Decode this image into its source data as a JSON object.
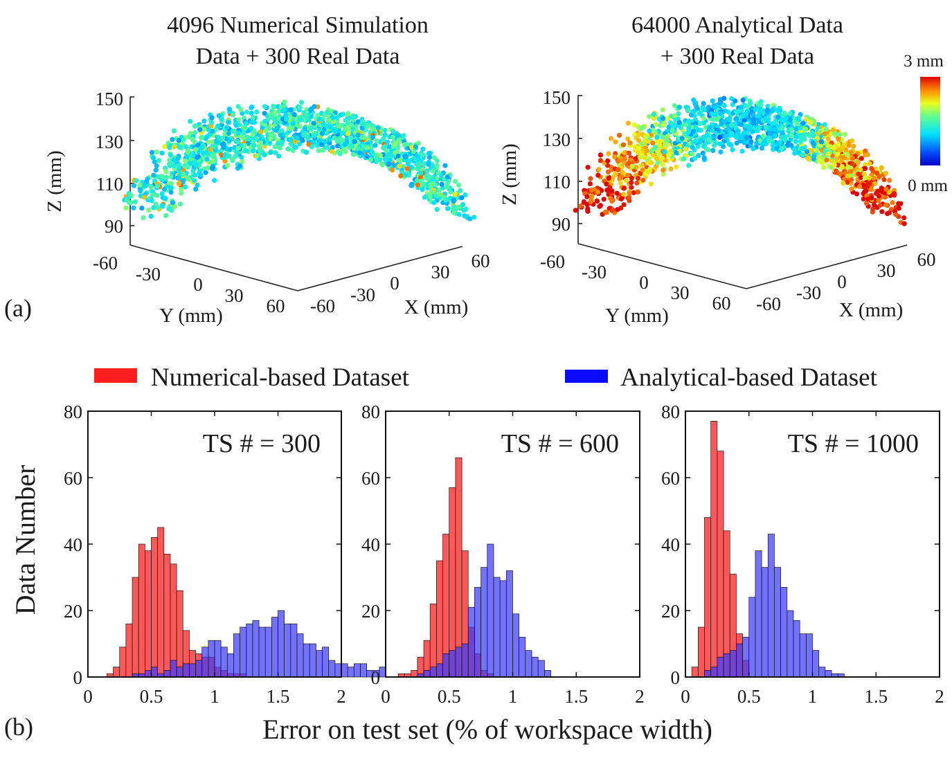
{
  "panel_a": {
    "label": "(a)",
    "left_title_line1": "4096 Numerical Simulation",
    "left_title_line2": "Data + 300 Real Data",
    "right_title_line1": "64000 Analytical Data",
    "right_title_line2": "+ 300 Real Data",
    "zlabel": "Z (mm)",
    "xlabel": "X (mm)",
    "ylabel": "Y (mm)",
    "z_ticks": [
      "150",
      "130",
      "110",
      "90"
    ],
    "x_ticks": [
      "-60",
      "-30",
      "0",
      "30",
      "60"
    ],
    "y_ticks": [
      "-60",
      "-30",
      "0",
      "30",
      "60"
    ],
    "colorbar_max": "3 mm",
    "colorbar_min": "0 mm"
  },
  "panel_b": {
    "label": "(b)",
    "legend_numerical": "Numerical-based Dataset",
    "legend_analytical": "Analytical-based Dataset",
    "ylabel": "Data Number",
    "xlabel": "Error on test set (% of workspace width)",
    "y_ticks": [
      "0",
      "20",
      "40",
      "60",
      "80"
    ],
    "x_ticks": [
      "0",
      "0.5",
      "1",
      "1.5",
      "2"
    ]
  },
  "colors": {
    "numerical": "#ff3b3b",
    "analytical": "#3b3bff",
    "overlap": "#5a1a8c"
  },
  "chart_data": [
    {
      "type": "scatter",
      "subtype": "3d-scatter",
      "title": "4096 Numerical Simulation Data + 300 Real Data",
      "xlabel": "X (mm)",
      "ylabel": "Y (mm)",
      "zlabel": "Z (mm)",
      "xlim": [
        -60,
        60
      ],
      "ylim": [
        -60,
        60
      ],
      "zlim": [
        85,
        150
      ],
      "color_scale": [
        0,
        3
      ],
      "dominant_error_range_mm": [
        0.5,
        1.5
      ]
    },
    {
      "type": "scatter",
      "subtype": "3d-scatter",
      "title": "64000 Analytical Data + 300 Real Data",
      "xlabel": "X (mm)",
      "ylabel": "Y (mm)",
      "zlabel": "Z (mm)",
      "xlim": [
        -60,
        60
      ],
      "ylim": [
        -60,
        60
      ],
      "zlim": [
        85,
        150
      ],
      "color_scale": [
        0,
        3
      ],
      "colorbar_labels": [
        "3 mm",
        "0 mm"
      ],
      "dominant_error_range_mm": [
        0.5,
        3
      ]
    },
    {
      "type": "bar",
      "subtype": "histogram",
      "annotation": "TS # = 300",
      "xlabel": "Error on test set (% of workspace width)",
      "ylabel": "Data Number",
      "xlim": [
        0,
        2
      ],
      "ylim": [
        0,
        80
      ],
      "bin_width": 0.05,
      "series": [
        {
          "name": "Numerical-based Dataset",
          "start": 0.15,
          "values": [
            1,
            3,
            9,
            16,
            30,
            40,
            38,
            42,
            45,
            37,
            34,
            26,
            14,
            8,
            7,
            6,
            6,
            3,
            2,
            1,
            1,
            1
          ]
        },
        {
          "name": "Analytical-based Dataset",
          "start": 0.35,
          "values": [
            1,
            1,
            2,
            3,
            1,
            2,
            5,
            3,
            4,
            4,
            5,
            9,
            11,
            11,
            9,
            7,
            13,
            15,
            16,
            17,
            15,
            15,
            18,
            20,
            16,
            16,
            13,
            10,
            10,
            8,
            9,
            5,
            4,
            4,
            3,
            4,
            4,
            2,
            2,
            3
          ]
        }
      ]
    },
    {
      "type": "bar",
      "subtype": "histogram",
      "annotation": "TS # = 600",
      "xlabel": "Error on test set (% of workspace width)",
      "ylabel": "Data Number",
      "xlim": [
        0,
        2
      ],
      "ylim": [
        0,
        80
      ],
      "bin_width": 0.05,
      "series": [
        {
          "name": "Numerical-based Dataset",
          "start": 0.1,
          "values": [
            1,
            1,
            2,
            6,
            11,
            22,
            35,
            43,
            57,
            66,
            38,
            15,
            7,
            2,
            1
          ]
        },
        {
          "name": "Analytical-based Dataset",
          "start": 0.25,
          "values": [
            1,
            2,
            3,
            4,
            7,
            8,
            9,
            10,
            21,
            27,
            33,
            40,
            30,
            29,
            32,
            19,
            12,
            8,
            6,
            5,
            2
          ]
        }
      ]
    },
    {
      "type": "bar",
      "subtype": "histogram",
      "annotation": "TS # = 1000",
      "xlabel": "Error on test set (% of workspace width)",
      "ylabel": "Data Number",
      "xlim": [
        0,
        2
      ],
      "ylim": [
        0,
        80
      ],
      "bin_width": 0.05,
      "series": [
        {
          "name": "Numerical-based Dataset",
          "start": 0.05,
          "values": [
            3,
            15,
            48,
            77,
            68,
            44,
            31,
            13,
            5
          ]
        },
        {
          "name": "Analytical-based Dataset",
          "start": 0.15,
          "values": [
            2,
            3,
            6,
            7,
            8,
            10,
            12,
            24,
            38,
            33,
            43,
            33,
            27,
            20,
            17,
            13,
            13,
            8,
            3,
            2,
            1,
            1
          ]
        }
      ]
    }
  ]
}
